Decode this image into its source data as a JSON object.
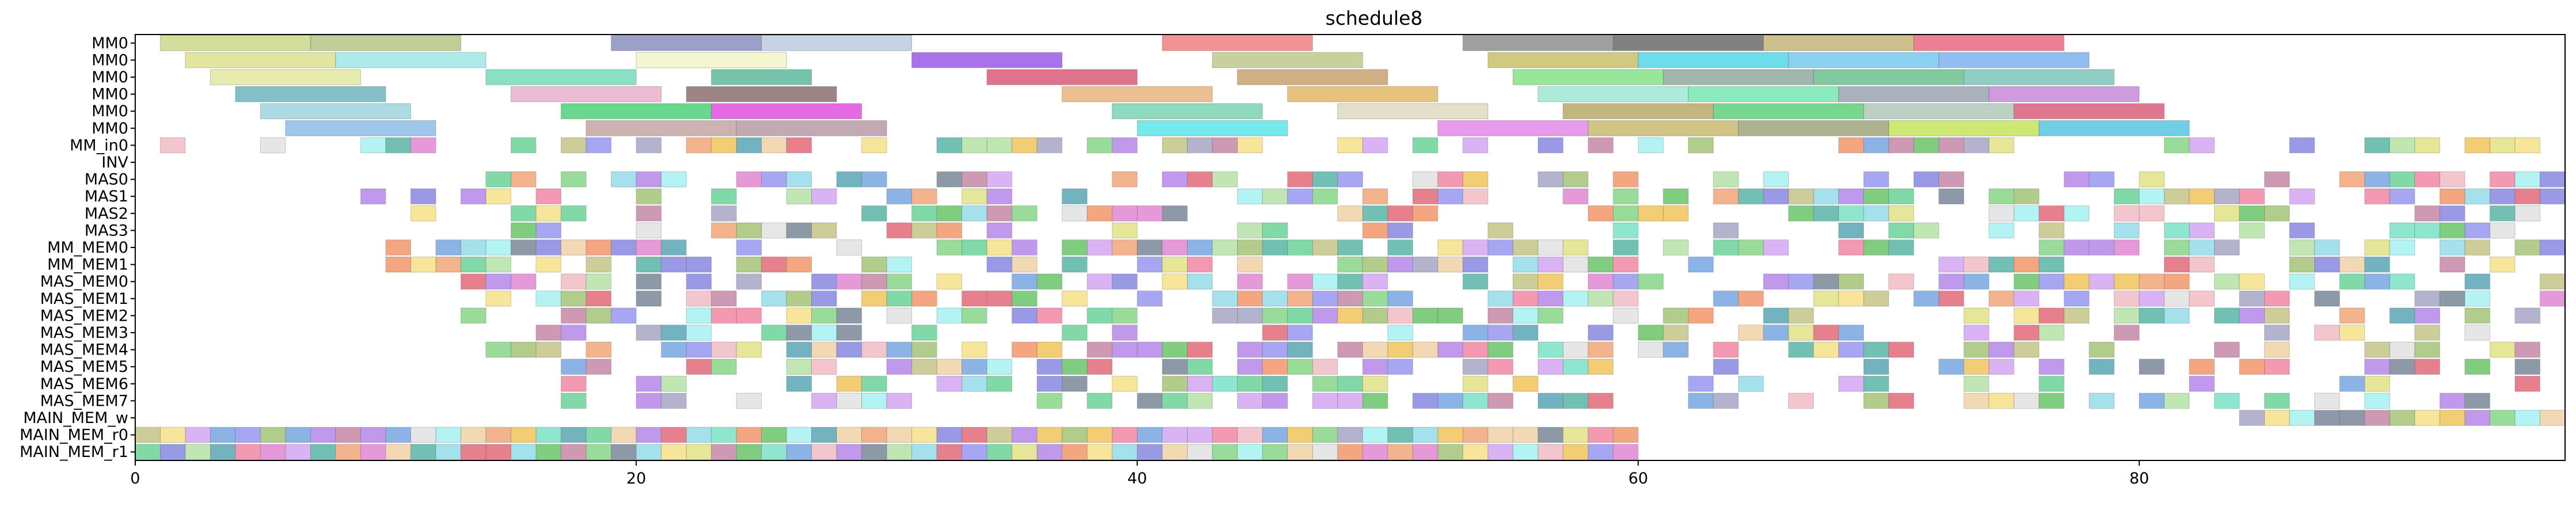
{
  "chart_data": {
    "type": "gantt",
    "title": "schedule8",
    "xlabel": "",
    "ylabel": "",
    "xlim": [
      0,
      97
    ],
    "xticks": [
      0,
      20,
      40,
      60,
      80
    ],
    "grid": false,
    "legend": "none",
    "rows": [
      "MM0",
      "MM0",
      "MM0",
      "MM0",
      "MM0",
      "MM0",
      "MM_in0",
      "INV",
      "MAS0",
      "MAS1",
      "MAS2",
      "MAS3",
      "MM_MEM0",
      "MM_MEM1",
      "MAS_MEM0",
      "MAS_MEM1",
      "MAS_MEM2",
      "MAS_MEM3",
      "MAS_MEM4",
      "MAS_MEM5",
      "MAS_MEM6",
      "MAS_MEM7",
      "MAIN_MEM_w",
      "MAIN_MEM_r0",
      "MAIN_MEM_r1"
    ],
    "palette": [
      "#8fbc4f",
      "#e33b3b",
      "#6fd5d5",
      "#a855e8",
      "#44c077",
      "#c9a45a",
      "#5aa0e6",
      "#e85ad7",
      "#c0392b",
      "#7f8c8d",
      "#f39c12",
      "#1abc9c",
      "#2c3e50",
      "#d35400",
      "#27ae60",
      "#8e44ad",
      "#f1c40f",
      "#16a085",
      "#e67e22",
      "#2980b9",
      "#95a5a6",
      "#bdc3a0",
      "#ff6f91",
      "#b8e994",
      "#6a89cc"
    ],
    "bars": [
      {
        "row": 0,
        "start": 1,
        "end": 7,
        "color": "#c9d98a"
      },
      {
        "row": 0,
        "start": 7,
        "end": 13,
        "color": "#b6c485"
      },
      {
        "row": 0,
        "start": 19,
        "end": 25,
        "color": "#8b8fc0"
      },
      {
        "row": 0,
        "start": 25,
        "end": 31,
        "color": "#bccbe0"
      },
      {
        "row": 0,
        "start": 41,
        "end": 47,
        "color": "#f07f7f"
      },
      {
        "row": 0,
        "start": 53,
        "end": 59,
        "color": "#8e8e8e"
      },
      {
        "row": 0,
        "start": 59,
        "end": 65,
        "color": "#6b6b6b"
      },
      {
        "row": 0,
        "start": 65,
        "end": 71,
        "color": "#c5b57a"
      },
      {
        "row": 0,
        "start": 71,
        "end": 77,
        "color": "#e86a80"
      },
      {
        "row": 1,
        "start": 2,
        "end": 8,
        "color": "#dde08f"
      },
      {
        "row": 1,
        "start": 8,
        "end": 14,
        "color": "#9ee7e6"
      },
      {
        "row": 1,
        "start": 20,
        "end": 26,
        "color": "#f1f4c7"
      },
      {
        "row": 1,
        "start": 31,
        "end": 37,
        "color": "#9b59e6"
      },
      {
        "row": 1,
        "start": 43,
        "end": 49,
        "color": "#bcc98b"
      },
      {
        "row": 1,
        "start": 54,
        "end": 60,
        "color": "#c8c06a"
      },
      {
        "row": 1,
        "start": 60,
        "end": 66,
        "color": "#55d7e8"
      },
      {
        "row": 1,
        "start": 66,
        "end": 72,
        "color": "#77c9f0"
      },
      {
        "row": 1,
        "start": 72,
        "end": 78,
        "color": "#7fb2ef"
      },
      {
        "row": 2,
        "start": 3,
        "end": 9,
        "color": "#e3e8a0"
      },
      {
        "row": 2,
        "start": 14,
        "end": 20,
        "color": "#77dbb8"
      },
      {
        "row": 2,
        "start": 23,
        "end": 27,
        "color": "#5fb89a"
      },
      {
        "row": 2,
        "start": 34,
        "end": 40,
        "color": "#d95b78"
      },
      {
        "row": 2,
        "start": 44,
        "end": 50,
        "color": "#c9a16f"
      },
      {
        "row": 2,
        "start": 55,
        "end": 61,
        "color": "#85e288"
      },
      {
        "row": 2,
        "start": 61,
        "end": 67,
        "color": "#8fa99f"
      },
      {
        "row": 2,
        "start": 67,
        "end": 73,
        "color": "#6cc08f"
      },
      {
        "row": 2,
        "start": 73,
        "end": 79,
        "color": "#7bc4bb"
      },
      {
        "row": 3,
        "start": 4,
        "end": 10,
        "color": "#6fb3bd"
      },
      {
        "row": 3,
        "start": 15,
        "end": 21,
        "color": "#e7b0cb"
      },
      {
        "row": 3,
        "start": 22,
        "end": 28,
        "color": "#8c7070"
      },
      {
        "row": 3,
        "start": 37,
        "end": 43,
        "color": "#e8b47e"
      },
      {
        "row": 3,
        "start": 46,
        "end": 52,
        "color": "#e3b765"
      },
      {
        "row": 3,
        "start": 56,
        "end": 62,
        "color": "#9ee8d2"
      },
      {
        "row": 3,
        "start": 62,
        "end": 68,
        "color": "#78e8b0"
      },
      {
        "row": 3,
        "start": 68,
        "end": 74,
        "color": "#9aa5b0"
      },
      {
        "row": 3,
        "start": 74,
        "end": 80,
        "color": "#c78ad9"
      },
      {
        "row": 4,
        "start": 5,
        "end": 11,
        "color": "#9fd3de"
      },
      {
        "row": 4,
        "start": 17,
        "end": 23,
        "color": "#4fd17a"
      },
      {
        "row": 4,
        "start": 23,
        "end": 29,
        "color": "#e04fde"
      },
      {
        "row": 4,
        "start": 39,
        "end": 45,
        "color": "#7bd3b0"
      },
      {
        "row": 4,
        "start": 48,
        "end": 54,
        "color": "#ded9c0"
      },
      {
        "row": 4,
        "start": 57,
        "end": 63,
        "color": "#b8a86a"
      },
      {
        "row": 4,
        "start": 63,
        "end": 69,
        "color": "#5fd07b"
      },
      {
        "row": 4,
        "start": 69,
        "end": 75,
        "color": "#b0c8b8"
      },
      {
        "row": 4,
        "start": 75,
        "end": 81,
        "color": "#d9607a"
      },
      {
        "row": 5,
        "start": 6,
        "end": 12,
        "color": "#8ebce8"
      },
      {
        "row": 5,
        "start": 18,
        "end": 24,
        "color": "#c4a4a4"
      },
      {
        "row": 5,
        "start": 24,
        "end": 30,
        "color": "#b89aa3"
      },
      {
        "row": 5,
        "start": 40,
        "end": 46,
        "color": "#5de5e8"
      },
      {
        "row": 5,
        "start": 52,
        "end": 58,
        "color": "#e28ae8"
      },
      {
        "row": 5,
        "start": 58,
        "end": 64,
        "color": "#c7b870"
      },
      {
        "row": 5,
        "start": 64,
        "end": 70,
        "color": "#9da67a"
      },
      {
        "row": 5,
        "start": 70,
        "end": 76,
        "color": "#c4e55a"
      },
      {
        "row": 5,
        "start": 76,
        "end": 82,
        "color": "#58c6e0"
      }
    ],
    "filler_rows": {
      "6": {
        "from": 0,
        "to": 97,
        "density": 0.55
      },
      "8": {
        "from": 10,
        "to": 97,
        "density": 0.5
      },
      "9": {
        "from": 9,
        "to": 97,
        "density": 0.62
      },
      "10": {
        "from": 10,
        "to": 97,
        "density": 0.45
      },
      "11": {
        "from": 15,
        "to": 97,
        "density": 0.48
      },
      "12": {
        "from": 9,
        "to": 97,
        "density": 0.6
      },
      "13": {
        "from": 9,
        "to": 97,
        "density": 0.55
      },
      "14": {
        "from": 13,
        "to": 97,
        "density": 0.6
      },
      "15": {
        "from": 13,
        "to": 97,
        "density": 0.62
      },
      "16": {
        "from": 13,
        "to": 97,
        "density": 0.58
      },
      "17": {
        "from": 15,
        "to": 97,
        "density": 0.55
      },
      "18": {
        "from": 14,
        "to": 97,
        "density": 0.55
      },
      "19": {
        "from": 14,
        "to": 97,
        "density": 0.5
      },
      "20": {
        "from": 15,
        "to": 97,
        "density": 0.48
      },
      "21": {
        "from": 17,
        "to": 97,
        "density": 0.5
      },
      "22": {
        "from": 84,
        "to": 97,
        "density": 0.9
      },
      "23": {
        "from": 0,
        "to": 60,
        "density": 1.0
      },
      "24": {
        "from": 0,
        "to": 60,
        "density": 1.0
      }
    }
  }
}
